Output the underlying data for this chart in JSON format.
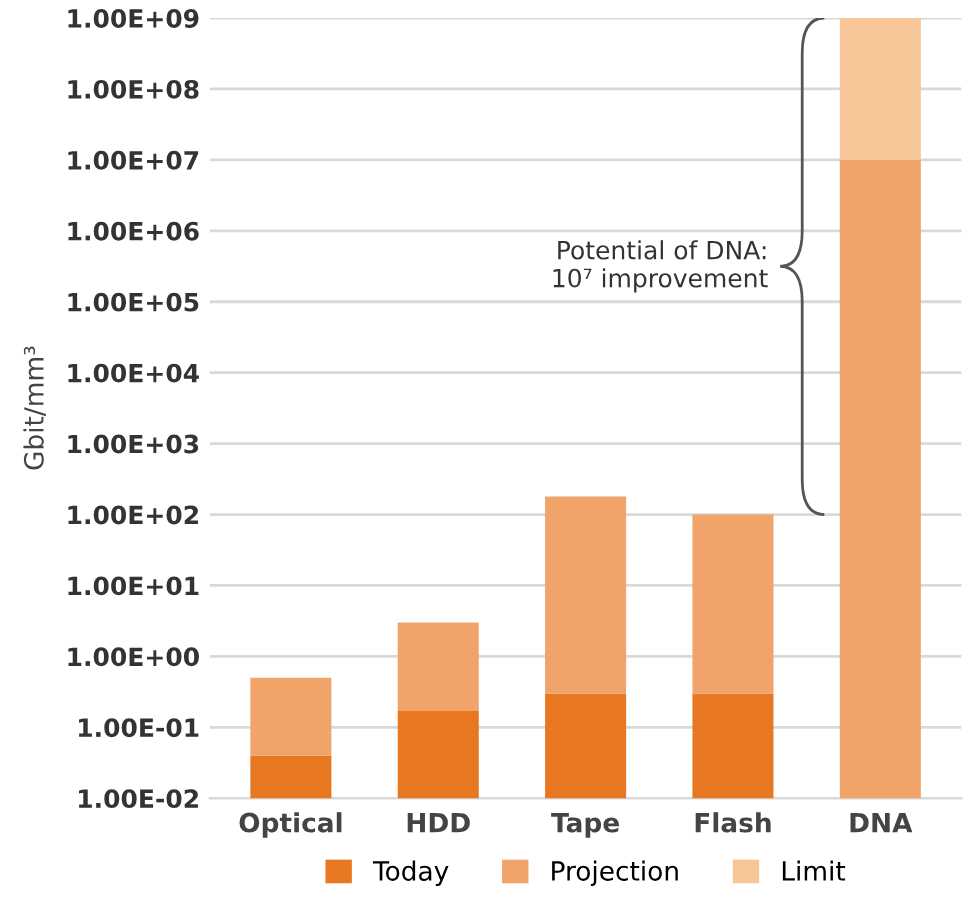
{
  "chart_data": {
    "type": "bar",
    "stacked": true,
    "ylabel": "Gbit/mm³",
    "log": "y",
    "categories": [
      "Optical",
      "HDD",
      "Tape",
      "Flash",
      "DNA"
    ],
    "series": [
      {
        "name": "Today",
        "color": "#e87722",
        "values": [
          0.04,
          0.17,
          0.3,
          0.3,
          null
        ]
      },
      {
        "name": "Projection",
        "color": "#f0a46a",
        "values": [
          0.46,
          2.83,
          179.7,
          99.7,
          10000000
        ]
      },
      {
        "name": "Limit",
        "color": "#f6c598",
        "values": [
          null,
          null,
          null,
          null,
          990000000
        ]
      }
    ],
    "ylim": [
      0.01,
      1000000000
    ],
    "yticks": [
      {
        "value": 0.01,
        "label": "1.00E-02"
      },
      {
        "value": 0.1,
        "label": "1.00E-01"
      },
      {
        "value": 1,
        "label": "1.00E+00"
      },
      {
        "value": 10,
        "label": "1.00E+01"
      },
      {
        "value": 100,
        "label": "1.00E+02"
      },
      {
        "value": 1000,
        "label": "1.00E+03"
      },
      {
        "value": 10000,
        "label": "1.00E+04"
      },
      {
        "value": 100000,
        "label": "1.00E+05"
      },
      {
        "value": 1000000,
        "label": "1.00E+06"
      },
      {
        "value": 10000000,
        "label": "1.00E+07"
      },
      {
        "value": 100000000,
        "label": "1.00E+08"
      },
      {
        "value": 1000000000,
        "label": "1.00E+09"
      }
    ],
    "annotations": [
      "Potential of DNA:\n10⁷ improvement"
    ],
    "grid": "y",
    "legend": "bottom"
  }
}
